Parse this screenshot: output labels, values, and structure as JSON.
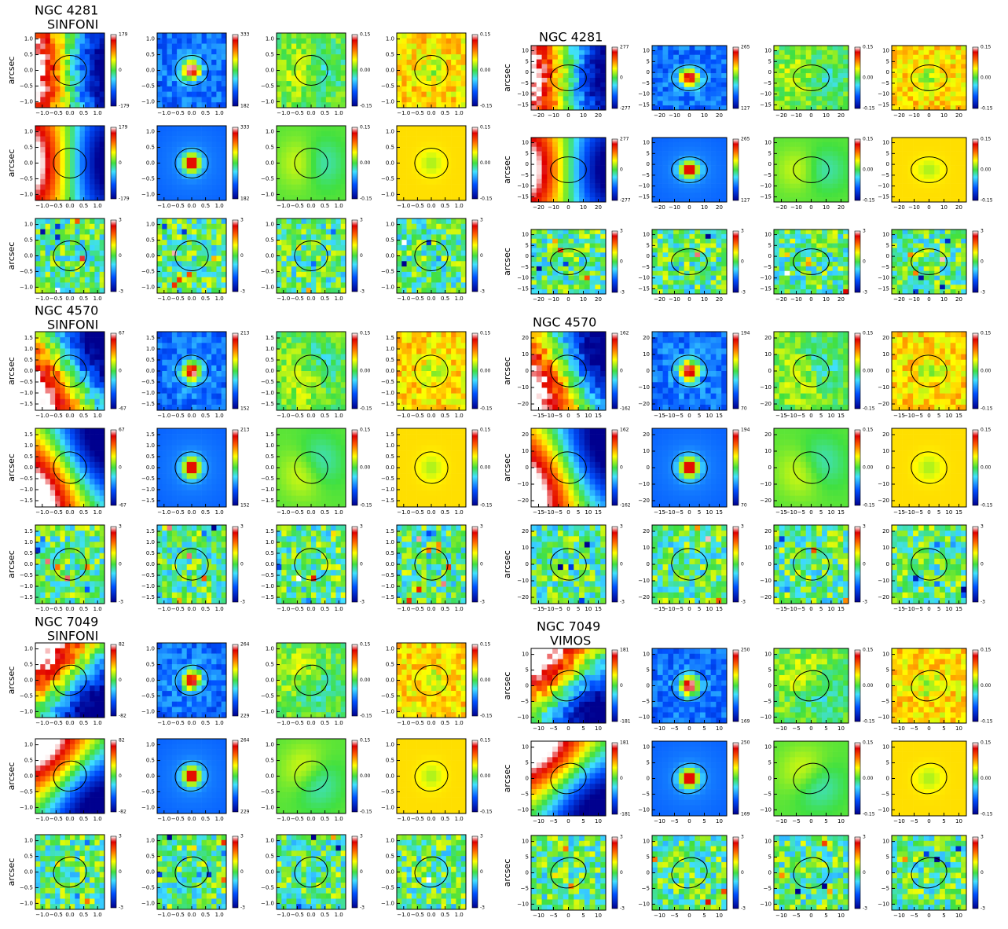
{
  "groups": [
    {
      "title": "NGC 4281",
      "subtitle": "SINFONI",
      "ylabel": "arcsec",
      "xticks": [
        "−1.0",
        "−0.5",
        "0.0",
        "0.5",
        "1.0"
      ],
      "yticks": [
        "1.0",
        "0.5",
        "0.0",
        "−0.5",
        "−1.0"
      ],
      "rows": [
        [
          [
            "179",
            "0",
            "-179"
          ],
          [
            "333",
            "182"
          ],
          [
            "0.15",
            "0.00",
            "-0.15"
          ],
          [
            "0.15",
            "0.00",
            "-0.15"
          ]
        ],
        [
          [
            "179",
            "0",
            "-179"
          ],
          [
            "333",
            "182"
          ],
          [
            "0.15",
            "0.00",
            "-0.15"
          ],
          [
            "0.15",
            "0.00",
            "-0.15"
          ]
        ],
        [
          [
            "3",
            "0",
            "-3"
          ],
          [
            "3",
            "0",
            "-3"
          ],
          [
            "3",
            "0",
            "-3"
          ],
          [
            "3",
            "0",
            "-3"
          ]
        ]
      ]
    },
    {
      "title": "NGC 4281",
      "ylabel": "arcsec",
      "xticks": [
        "−20",
        "−10",
        "0",
        "10",
        "20"
      ],
      "yticks": [
        "10",
        "5",
        "0",
        "−5",
        "−10",
        "−15"
      ],
      "rows": [
        [
          [
            "277",
            "0",
            "-277"
          ],
          [
            "265",
            "127"
          ],
          [
            "0.15",
            "0.00",
            "-0.15"
          ],
          [
            "0.15",
            "0.00",
            "-0.15"
          ]
        ],
        [
          [
            "277",
            "0",
            "-277"
          ],
          [
            "265",
            "127"
          ],
          [
            "0.15",
            "0.00",
            "-0.15"
          ],
          [
            "0.15",
            "0.00",
            "-0.15"
          ]
        ],
        [
          [
            "3",
            "0",
            "-3"
          ],
          [
            "3",
            "0",
            "-3"
          ],
          [
            "3",
            "0",
            "-3"
          ],
          [
            "3",
            "0",
            "-3"
          ]
        ]
      ]
    },
    {
      "title": "NGC 4570",
      "subtitle": "SINFONI",
      "ylabel": "arcsec",
      "xticks": [
        "−1.0",
        "−0.5",
        "0.0",
        "0.5",
        "1.0"
      ],
      "yticks": [
        "1.5",
        "1.0",
        "0.5",
        "0.0",
        "−0.5",
        "−1.0",
        "−1.5"
      ],
      "rows": [
        [
          [
            "67",
            "0",
            "-67"
          ],
          [
            "213",
            "152"
          ],
          [
            "0.15",
            "0.00",
            "-0.15"
          ],
          [
            "0.15",
            "0.00",
            "-0.15"
          ]
        ],
        [
          [
            "67",
            "0",
            "-67"
          ],
          [
            "213",
            "152"
          ],
          [
            "0.15",
            "0.00",
            "-0.15"
          ],
          [
            "0.15",
            "0.00",
            "-0.15"
          ]
        ],
        [
          [
            "3",
            "0",
            "-3"
          ],
          [
            "3",
            "0",
            "-3"
          ],
          [
            "3",
            "0",
            "-3"
          ],
          [
            "3",
            "0",
            "-3"
          ]
        ]
      ]
    },
    {
      "title": "NGC 4570",
      "ylabel": "arcsec",
      "xticks": [
        "−15",
        "−10",
        "−5",
        "0",
        "5",
        "10",
        "15"
      ],
      "yticks": [
        "20",
        "10",
        "0",
        "−10",
        "−20"
      ],
      "rows": [
        [
          [
            "162",
            "0",
            "-162"
          ],
          [
            "194",
            "70"
          ],
          [
            "0.15",
            "0.00",
            "-0.15"
          ],
          [
            "0.15",
            "0.00",
            "-0.15"
          ]
        ],
        [
          [
            "162",
            "0",
            "-162"
          ],
          [
            "194",
            "70"
          ],
          [
            "0.15",
            "0.00",
            "-0.15"
          ],
          [
            "0.15",
            "0.00",
            "-0.15"
          ]
        ],
        [
          [
            "3",
            "0",
            "-3"
          ],
          [
            "3",
            "0",
            "-3"
          ],
          [
            "3",
            "0",
            "-3"
          ],
          [
            "3",
            "0",
            "-3"
          ]
        ]
      ]
    },
    {
      "title": "NGC 7049",
      "subtitle": "SINFONI",
      "ylabel": "arcsec",
      "xticks": [
        "−1.0",
        "−0.5",
        "0.0",
        "0.5",
        "1.0"
      ],
      "yticks": [
        "1.0",
        "0.5",
        "0.0",
        "−0.5",
        "−1.0"
      ],
      "rows": [
        [
          [
            "82",
            "0",
            "-82"
          ],
          [
            "264",
            "229"
          ],
          [
            "0.15",
            "0.00",
            "-0.15"
          ],
          [
            "0.15",
            "0.00",
            "-0.15"
          ]
        ],
        [
          [
            "82",
            "0",
            "-82"
          ],
          [
            "264",
            "229"
          ],
          [
            "0.15",
            "0.00",
            "-0.15"
          ],
          [
            "0.15",
            "0.00",
            "-0.15"
          ]
        ],
        [
          [
            "3",
            "0",
            "-3"
          ],
          [
            "3",
            "0",
            "-3"
          ],
          [
            "3",
            "0",
            "-3"
          ],
          [
            "3",
            "0",
            "-3"
          ]
        ]
      ]
    },
    {
      "title": "NGC 7049",
      "subtitle": "VIMOS",
      "ylabel": "arcsec",
      "xticks": [
        "−10",
        "−5",
        "0",
        "5",
        "10"
      ],
      "yticks": [
        "10",
        "5",
        "0",
        "−5",
        "−10"
      ],
      "rows": [
        [
          [
            "181",
            "0",
            "-181"
          ],
          [
            "250",
            "169"
          ],
          [
            "0.15",
            "0.00",
            "-0.15"
          ],
          [
            "0.15",
            "0.00",
            "-0.15"
          ]
        ],
        [
          [
            "181",
            "0",
            "-181"
          ],
          [
            "250",
            "169"
          ],
          [
            "0.15",
            "0.00",
            "-0.15"
          ],
          [
            "0.15",
            "0.00",
            "-0.15"
          ]
        ],
        [
          [
            "3",
            "0",
            "-3"
          ],
          [
            "3",
            "0",
            "-3"
          ],
          [
            "3",
            "0",
            "-3"
          ],
          [
            "3",
            "0",
            "-3"
          ]
        ]
      ]
    }
  ]
}
